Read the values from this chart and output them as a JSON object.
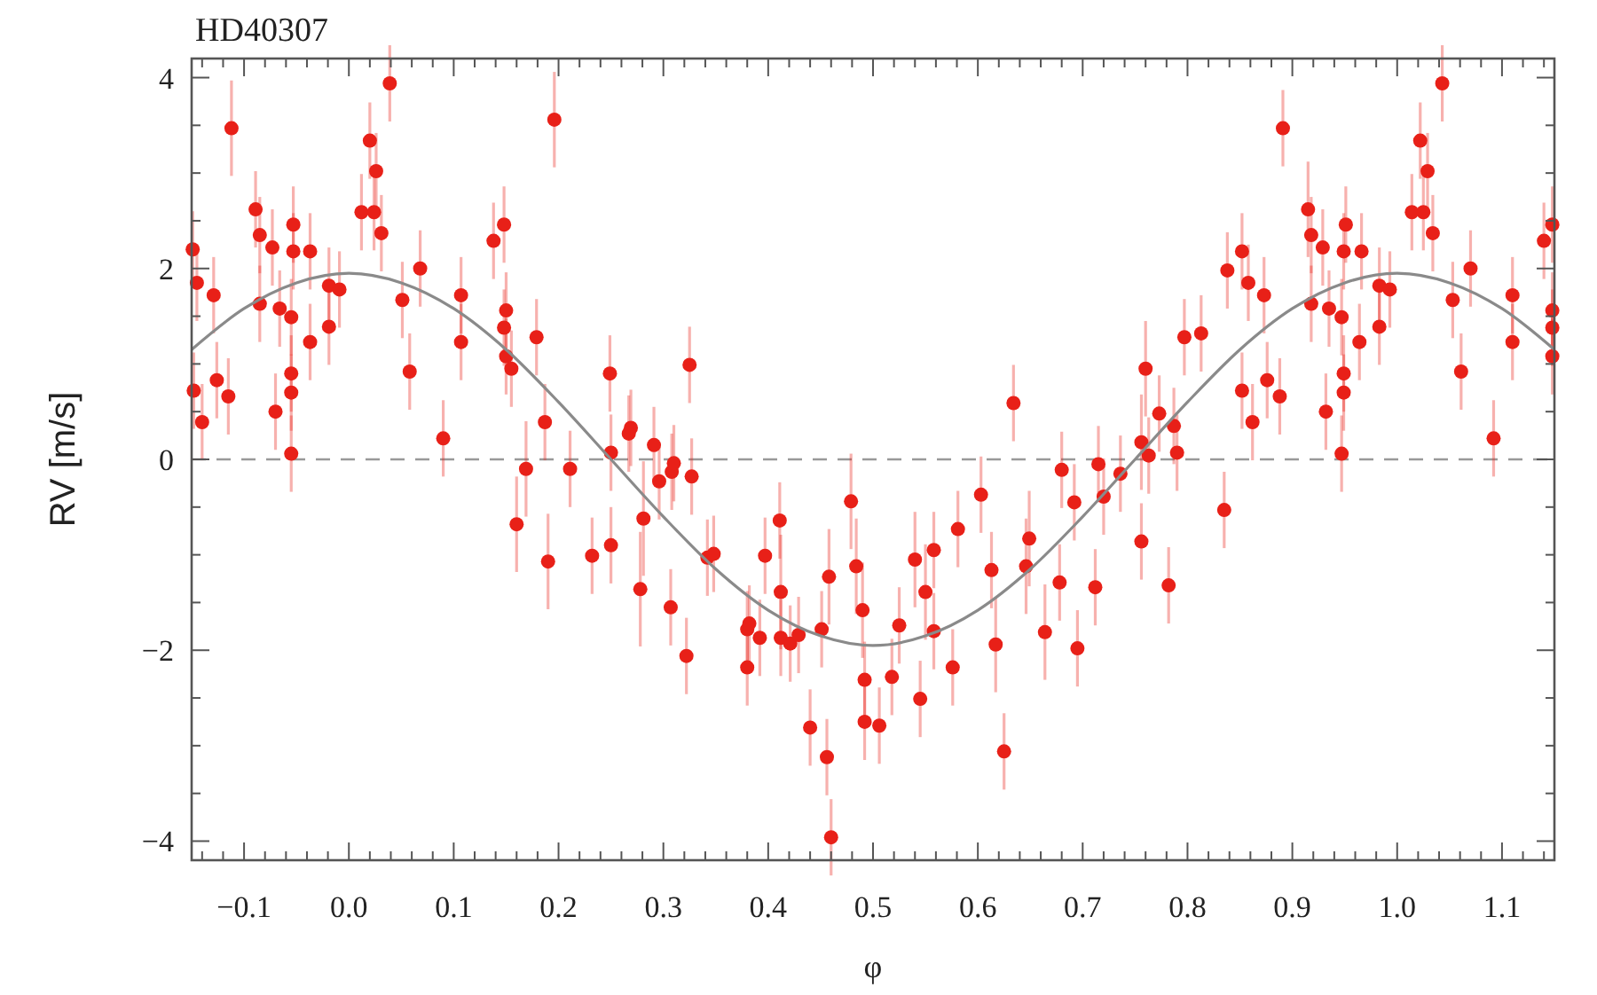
{
  "chart_data": {
    "type": "scatter",
    "title": "HD40307",
    "xlabel": "φ",
    "ylabel": "RV [m/s]",
    "xlim": [
      -0.15,
      1.15
    ],
    "ylim": [
      -4.2,
      4.2
    ],
    "xticks": [
      {
        "value": -0.14,
        "label": null
      },
      {
        "value": -0.12,
        "label": null
      },
      {
        "value": -0.1,
        "label": "−0.1"
      },
      {
        "value": -0.08,
        "label": null
      },
      {
        "value": -0.06,
        "label": null
      },
      {
        "value": -0.04,
        "label": null
      },
      {
        "value": -0.02,
        "label": null
      },
      {
        "value": 0,
        "label": "0.0"
      },
      {
        "value": 0.02,
        "label": null
      },
      {
        "value": 0.04,
        "label": null
      },
      {
        "value": 0.06,
        "label": null
      },
      {
        "value": 0.08,
        "label": null
      },
      {
        "value": 0.1,
        "label": "0.1"
      },
      {
        "value": 0.12,
        "label": null
      },
      {
        "value": 0.14,
        "label": null
      },
      {
        "value": 0.16,
        "label": null
      },
      {
        "value": 0.18,
        "label": null
      },
      {
        "value": 0.2,
        "label": "0.2"
      },
      {
        "value": 0.22,
        "label": null
      },
      {
        "value": 0.24,
        "label": null
      },
      {
        "value": 0.26,
        "label": null
      },
      {
        "value": 0.28,
        "label": null
      },
      {
        "value": 0.3,
        "label": "0.3"
      },
      {
        "value": 0.32,
        "label": null
      },
      {
        "value": 0.34,
        "label": null
      },
      {
        "value": 0.36,
        "label": null
      },
      {
        "value": 0.38,
        "label": null
      },
      {
        "value": 0.4,
        "label": "0.4"
      },
      {
        "value": 0.42,
        "label": null
      },
      {
        "value": 0.44,
        "label": null
      },
      {
        "value": 0.46,
        "label": null
      },
      {
        "value": 0.48,
        "label": null
      },
      {
        "value": 0.5,
        "label": "0.5"
      },
      {
        "value": 0.52,
        "label": null
      },
      {
        "value": 0.54,
        "label": null
      },
      {
        "value": 0.56,
        "label": null
      },
      {
        "value": 0.58,
        "label": null
      },
      {
        "value": 0.6,
        "label": "0.6"
      },
      {
        "value": 0.62,
        "label": null
      },
      {
        "value": 0.64,
        "label": null
      },
      {
        "value": 0.66,
        "label": null
      },
      {
        "value": 0.68,
        "label": null
      },
      {
        "value": 0.7,
        "label": "0.7"
      },
      {
        "value": 0.72,
        "label": null
      },
      {
        "value": 0.74,
        "label": null
      },
      {
        "value": 0.76,
        "label": null
      },
      {
        "value": 0.78,
        "label": null
      },
      {
        "value": 0.8,
        "label": "0.8"
      },
      {
        "value": 0.82,
        "label": null
      },
      {
        "value": 0.84,
        "label": null
      },
      {
        "value": 0.86,
        "label": null
      },
      {
        "value": 0.88,
        "label": null
      },
      {
        "value": 0.9,
        "label": "0.9"
      },
      {
        "value": 0.92,
        "label": null
      },
      {
        "value": 0.94,
        "label": null
      },
      {
        "value": 0.96,
        "label": null
      },
      {
        "value": 0.98,
        "label": null
      },
      {
        "value": 1.0,
        "label": "1.0"
      },
      {
        "value": 1.02,
        "label": null
      },
      {
        "value": 1.04,
        "label": null
      },
      {
        "value": 1.06,
        "label": null
      },
      {
        "value": 1.08,
        "label": null
      },
      {
        "value": 1.1,
        "label": "1.1"
      },
      {
        "value": 1.12,
        "label": null
      },
      {
        "value": 1.14,
        "label": null
      }
    ],
    "yticks": [
      {
        "value": -4,
        "label": "−4"
      },
      {
        "value": -3.5,
        "label": null
      },
      {
        "value": -3,
        "label": null
      },
      {
        "value": -2.5,
        "label": null
      },
      {
        "value": -2,
        "label": "−2"
      },
      {
        "value": -1.5,
        "label": null
      },
      {
        "value": -1,
        "label": null
      },
      {
        "value": -0.5,
        "label": null
      },
      0,
      {
        "value": 0.5,
        "label": null
      },
      {
        "value": 1,
        "label": null
      },
      {
        "value": 1.5,
        "label": null
      },
      2,
      {
        "value": 2.5,
        "label": null
      },
      {
        "value": 3,
        "label": null
      },
      {
        "value": 3.5,
        "label": null
      },
      4
    ],
    "grid": false,
    "ref_lines": [
      {
        "axis": "y",
        "value": 0,
        "color": "#999999",
        "line_style": "dashed"
      }
    ],
    "series": [
      {
        "color": "#e82018",
        "marker": "circle",
        "x": [
          -0.149,
          -0.145,
          -0.129,
          -0.148,
          -0.14,
          -0.112,
          -0.126,
          -0.115,
          -0.089,
          -0.085,
          -0.073,
          -0.085,
          -0.066,
          -0.055,
          -0.053,
          -0.053,
          -0.037,
          -0.037,
          -0.055,
          -0.055,
          -0.07,
          -0.055,
          -0.019,
          -0.009,
          -0.019,
          0.012,
          0.024,
          0.02,
          0.026,
          0.031,
          0.039,
          0.051,
          0.058,
          0.068,
          0.09,
          0.107,
          0.107,
          0.138,
          0.148,
          0.15,
          0.148,
          0.15,
          0.155,
          0.179,
          0.187,
          0.196,
          0.249,
          0.25,
          0.269,
          0.267,
          0.291,
          0.325,
          0.169,
          0.16,
          0.19,
          0.211,
          0.232,
          0.25,
          0.281,
          0.278,
          0.296,
          0.308,
          0.31,
          0.327,
          0.307,
          0.322,
          0.342,
          0.348,
          0.38,
          0.382,
          0.392,
          0.38,
          0.397,
          0.411,
          0.412,
          0.412,
          0.421,
          0.429,
          0.44,
          0.451,
          0.456,
          0.458,
          0.46,
          0.479,
          0.484,
          0.49,
          0.492,
          0.492,
          0.506,
          0.518,
          0.525,
          0.54,
          0.545,
          0.55,
          0.558,
          0.558,
          0.576,
          0.581,
          0.603,
          0.613,
          0.617,
          0.625,
          0.634,
          0.646,
          0.649,
          0.664,
          0.678,
          0.68,
          0.692,
          0.695,
          0.712,
          0.715,
          0.72,
          0.736,
          0.756,
          0.763,
          0.782,
          0.79,
          0.76,
          0.773,
          0.787,
          0.756,
          0.797,
          0.813,
          0.835,
          0.838,
          0.852,
          0.858,
          0.873,
          0.852,
          0.862,
          0.876,
          0.888,
          0.891,
          0.915,
          0.918,
          0.929,
          0.918,
          0.935,
          0.947,
          0.951,
          0.949,
          0.966,
          0.964,
          0.949,
          0.949,
          0.932,
          0.947,
          0.983,
          0.993,
          0.983,
          1.014,
          1.025,
          1.022,
          1.029,
          1.034,
          1.043,
          1.053,
          1.061,
          1.07,
          1.092,
          1.11,
          1.11,
          1.14,
          1.148,
          1.148,
          1.148,
          1.148
        ],
        "values": [
          2.2,
          1.85,
          1.72,
          0.72,
          0.39,
          3.47,
          0.83,
          0.66,
          2.62,
          2.35,
          2.22,
          1.63,
          1.58,
          1.49,
          2.46,
          2.18,
          2.18,
          1.23,
          0.9,
          0.7,
          0.5,
          0.06,
          1.82,
          1.78,
          1.39,
          2.59,
          2.59,
          3.34,
          3.02,
          2.37,
          3.94,
          1.67,
          0.92,
          2.0,
          0.22,
          1.72,
          1.23,
          2.29,
          2.46,
          1.56,
          1.38,
          1.08,
          0.95,
          1.28,
          0.39,
          3.56,
          0.9,
          0.07,
          0.33,
          0.27,
          0.15,
          0.99,
          -0.1,
          -0.68,
          -1.07,
          -0.1,
          -1.01,
          -0.9,
          -0.62,
          -1.36,
          -0.23,
          -0.13,
          -0.04,
          -0.18,
          -1.55,
          -2.06,
          -1.03,
          -0.99,
          -1.78,
          -1.72,
          -1.87,
          -2.18,
          -1.01,
          -0.64,
          -1.39,
          -1.87,
          -1.93,
          -1.84,
          -2.81,
          -1.78,
          -3.12,
          -1.23,
          -3.96,
          -0.44,
          -1.12,
          -1.58,
          -2.31,
          -2.75,
          -2.79,
          -2.28,
          -1.74,
          -1.05,
          -2.51,
          -1.39,
          -0.95,
          -1.8,
          -2.18,
          -0.73,
          -0.37,
          -1.16,
          -1.94,
          -3.06,
          0.59,
          -1.12,
          -0.83,
          -1.81,
          -1.29,
          -0.11,
          -0.45,
          -1.98,
          -1.34,
          -0.05,
          -0.39,
          -0.15,
          -0.86,
          0.04,
          -1.32,
          0.07,
          0.95,
          0.48,
          0.35,
          0.18,
          1.28,
          1.32,
          -0.53,
          1.98,
          2.18,
          1.85,
          1.72,
          0.72,
          0.39,
          0.83,
          0.66,
          3.47,
          2.62,
          2.35,
          2.22,
          1.63,
          1.58,
          1.49,
          2.46,
          2.18,
          2.18,
          1.23,
          0.9,
          0.7,
          0.5,
          0.06,
          1.82,
          1.78,
          1.39,
          2.59,
          2.59,
          3.34,
          3.02,
          2.37,
          3.94,
          1.67,
          0.92,
          2.0,
          0.22,
          1.72,
          1.23,
          2.29,
          2.46,
          1.56,
          1.38,
          1.08
        ],
        "errors": [
          0.4,
          0.4,
          0.4,
          0.4,
          0.4,
          0.5,
          0.4,
          0.4,
          0.4,
          0.4,
          0.4,
          0.4,
          0.4,
          0.4,
          0.4,
          0.4,
          0.4,
          0.4,
          0.4,
          0.4,
          0.4,
          0.4,
          0.4,
          0.4,
          0.4,
          0.4,
          0.4,
          0.4,
          0.4,
          0.4,
          0.4,
          0.4,
          0.4,
          0.4,
          0.4,
          0.4,
          0.4,
          0.4,
          0.4,
          0.4,
          0.4,
          0.4,
          0.4,
          0.4,
          0.4,
          0.5,
          0.4,
          0.4,
          0.4,
          0.4,
          0.4,
          0.4,
          0.5,
          0.5,
          0.5,
          0.4,
          0.4,
          0.4,
          0.6,
          0.6,
          0.4,
          0.4,
          0.4,
          0.4,
          0.4,
          0.4,
          0.4,
          0.4,
          0.4,
          0.4,
          0.4,
          0.4,
          0.4,
          0.4,
          0.6,
          0.4,
          0.4,
          0.4,
          0.4,
          0.4,
          0.4,
          0.5,
          0.4,
          0.5,
          0.5,
          0.5,
          0.4,
          0.4,
          0.4,
          0.4,
          0.4,
          0.5,
          0.4,
          0.5,
          0.4,
          0.4,
          0.4,
          0.4,
          0.4,
          0.4,
          0.5,
          0.4,
          0.4,
          0.5,
          0.5,
          0.5,
          0.4,
          0.4,
          0.4,
          0.4,
          0.4,
          0.4,
          0.4,
          0.4,
          0.4,
          0.4,
          0.4,
          0.4,
          0.5,
          0.4,
          0.4,
          0.5,
          0.4,
          0.4,
          0.4,
          0.4,
          0.4,
          0.4,
          0.4,
          0.4,
          0.4,
          0.4,
          0.4,
          0.4,
          0.5,
          0.4,
          0.4,
          0.4,
          0.4,
          0.4,
          0.4,
          0.4,
          0.4,
          0.4,
          0.4,
          0.4,
          0.4,
          0.4,
          0.4,
          0.4,
          0.4,
          0.4,
          0.4,
          0.4,
          0.4,
          0.4,
          0.4,
          0.4,
          0.4,
          0.4,
          0.4,
          0.4,
          0.4,
          0.4,
          0.4,
          0.4,
          0.4,
          0.4
        ]
      },
      {
        "type": "line",
        "color": "#8a8a8a",
        "marker": "none",
        "x": [
          -0.15,
          -0.1,
          -0.05,
          0,
          0.05,
          0.1,
          0.15,
          0.2,
          0.25,
          0.3,
          0.35,
          0.4,
          0.45,
          0.5,
          0.55,
          0.6,
          0.65,
          0.7,
          0.75,
          0.8,
          0.85,
          0.9,
          0.95,
          1.0,
          1.05,
          1.1,
          1.15
        ],
        "values": [
          1.15,
          1.58,
          1.85,
          1.95,
          1.85,
          1.58,
          1.15,
          0.6,
          0,
          -0.6,
          -1.15,
          -1.58,
          -1.85,
          -1.95,
          -1.85,
          -1.58,
          -1.15,
          -0.6,
          0,
          0.6,
          1.15,
          1.58,
          1.85,
          1.95,
          1.85,
          1.58,
          1.15
        ]
      }
    ]
  }
}
